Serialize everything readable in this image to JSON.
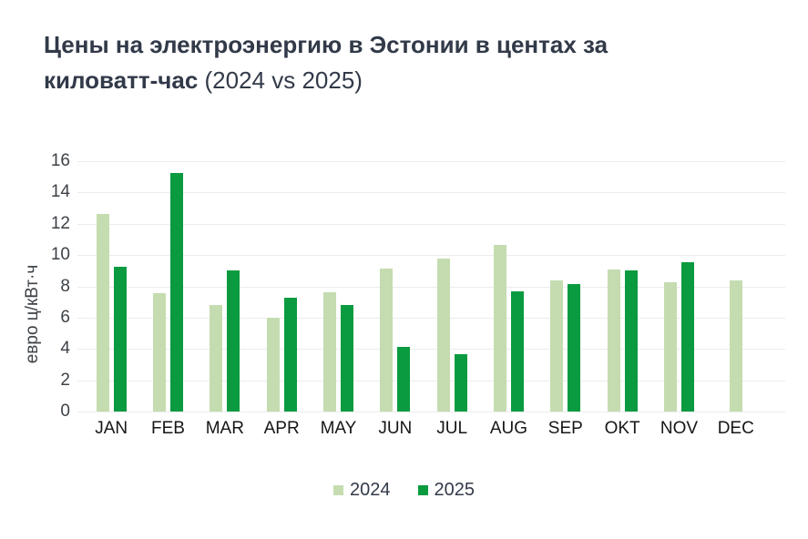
{
  "title": {
    "bold": "Цены на электроэнергию в Эстонии в центах за киловатт-час",
    "regular": " (2024 vs 2025)"
  },
  "chart_data": {
    "type": "bar",
    "title": "Цены на электроэнергию в Эстонии в центах за киловатт-час (2024 vs 2025)",
    "xlabel": "",
    "ylabel": "евро ц/кВт·ч",
    "ylim": [
      0,
      16
    ],
    "ytick_step": 2,
    "grid": true,
    "legend_position": "bottom",
    "categories": [
      "JAN",
      "FEB",
      "MAR",
      "APR",
      "MAY",
      "JUN",
      "JUL",
      "AUG",
      "SEP",
      "OKT",
      "NOV",
      "DEC"
    ],
    "series": [
      {
        "name": "2024",
        "color": "#c4dcb0",
        "values": [
          12.65,
          7.55,
          6.8,
          6.0,
          7.6,
          9.15,
          9.8,
          10.65,
          8.4,
          9.1,
          8.25,
          8.4
        ]
      },
      {
        "name": "2025",
        "color": "#0a9b40",
        "values": [
          9.25,
          15.25,
          9.0,
          7.3,
          6.8,
          4.15,
          3.65,
          7.7,
          8.15,
          9.0,
          9.55,
          null
        ]
      }
    ]
  },
  "colors": {
    "title_text": "#323a49",
    "axis_text": "#3d4247",
    "month_text": "#161616",
    "gridline": "#ececec",
    "background": "#ffffff"
  }
}
